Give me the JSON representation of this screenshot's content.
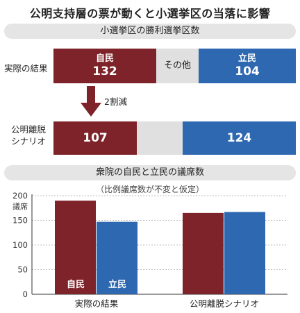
{
  "title": "公明支持層の票が動くと小選挙区の当落に影響",
  "colors": {
    "ldp": "#7e2329",
    "cdp": "#2d68b1",
    "other": "#e0e0e0"
  },
  "chart_data": [
    {
      "type": "bar",
      "title": "小選挙区の勝利選挙区数",
      "rows": [
        {
          "label": "実際の結果",
          "segments": [
            {
              "name": "自民",
              "value": 132
            },
            {
              "name": "その他",
              "value": null
            },
            {
              "name": "立民",
              "value": 104
            }
          ]
        },
        {
          "label": "公明離脱シナリオ",
          "label_lines": [
            "公明離脱",
            "シナリオ"
          ],
          "segments": [
            {
              "name": "自民",
              "value": 107
            },
            {
              "name": "その他",
              "value": null
            },
            {
              "name": "立民",
              "value": 124
            }
          ]
        }
      ],
      "annotation": "2割減"
    },
    {
      "type": "bar",
      "title": "衆院の自民と立民の議席数",
      "subtitle": "（比例議席数が不変と仮定）",
      "ylabel": "議席",
      "categories": [
        "実際の結果",
        "公明離脱シナリオ"
      ],
      "series": [
        {
          "name": "自民",
          "values": [
            190,
            165
          ]
        },
        {
          "name": "立民",
          "values": [
            147,
            167
          ]
        }
      ],
      "ylim": [
        0,
        200
      ],
      "yticks": [
        "0",
        "50",
        "100",
        "150",
        "200"
      ],
      "grid": true
    }
  ]
}
